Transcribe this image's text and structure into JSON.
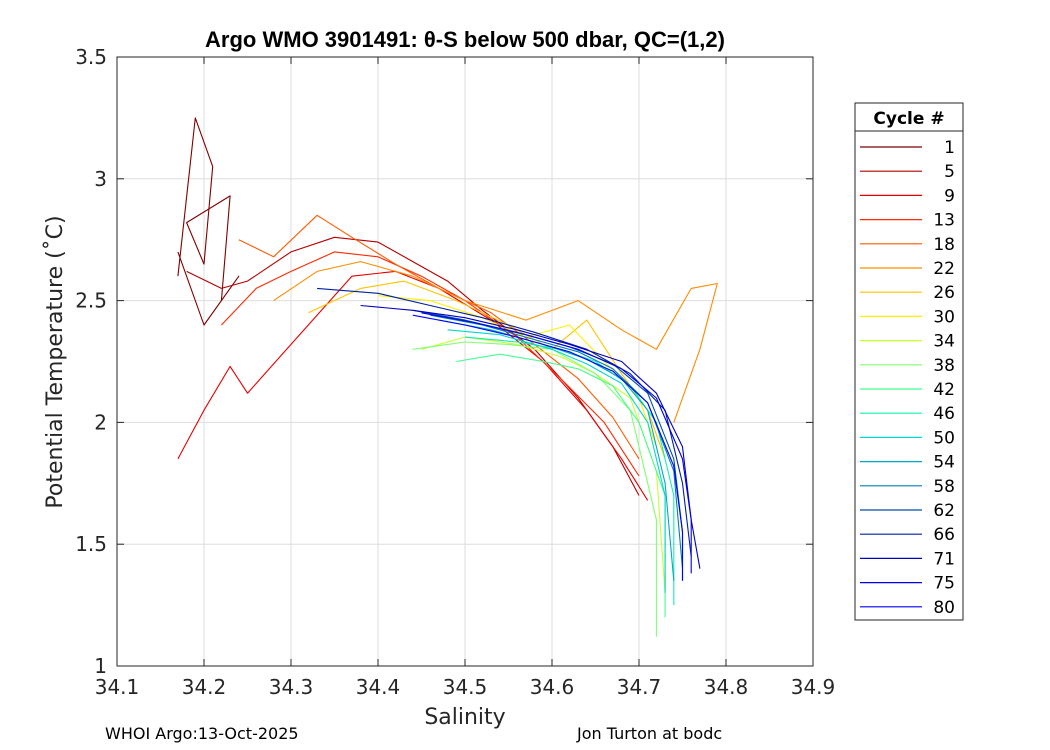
{
  "chart_data": {
    "type": "line",
    "title": "Argo WMO 3901491: θ-S below 500 dbar,  QC=(1,2)",
    "xlabel": "Salinity",
    "ylabel": "Potential Temperature (˚C)",
    "xlim": [
      34.1,
      34.9
    ],
    "ylim": [
      1,
      3.5
    ],
    "xticks": [
      "34.1",
      "34.2",
      "34.3",
      "34.4",
      "34.5",
      "34.6",
      "34.7",
      "34.8",
      "34.9"
    ],
    "yticks": [
      "1",
      "1.5",
      "2",
      "2.5",
      "3",
      "3.5"
    ],
    "grid": true,
    "legend": {
      "title": "Cycle #",
      "placement": "right",
      "entries": [
        {
          "label": "1",
          "color": "#800000"
        },
        {
          "label": "5",
          "color": "#b40000"
        },
        {
          "label": "9",
          "color": "#e60000"
        },
        {
          "label": "13",
          "color": "#ff2a00"
        },
        {
          "label": "18",
          "color": "#ff5a00"
        },
        {
          "label": "22",
          "color": "#ff8c00"
        },
        {
          "label": "26",
          "color": "#ffc400"
        },
        {
          "label": "30",
          "color": "#fff000"
        },
        {
          "label": "34",
          "color": "#c8ff30"
        },
        {
          "label": "38",
          "color": "#80ff70"
        },
        {
          "label": "42",
          "color": "#40ff90"
        },
        {
          "label": "46",
          "color": "#10f0b0"
        },
        {
          "label": "50",
          "color": "#00d8d0"
        },
        {
          "label": "54",
          "color": "#00a8c8"
        },
        {
          "label": "58",
          "color": "#0080b0"
        },
        {
          "label": "62",
          "color": "#0050a8"
        },
        {
          "label": "66",
          "color": "#0020a0"
        },
        {
          "label": "71",
          "color": "#0000c0"
        },
        {
          "label": "75",
          "color": "#0000e8"
        },
        {
          "label": "80",
          "color": "#0000ff"
        }
      ]
    },
    "series": [
      {
        "name": "1",
        "color": "#800000",
        "x": [
          34.17,
          34.19,
          34.21,
          34.2,
          34.18,
          34.23,
          34.22,
          34.24,
          34.2,
          34.17
        ],
        "y": [
          2.6,
          3.25,
          3.05,
          2.65,
          2.82,
          2.93,
          2.5,
          2.6,
          2.4,
          2.7
        ]
      },
      {
        "name": "5",
        "color": "#b40000",
        "x": [
          34.18,
          34.22,
          34.25,
          34.3,
          34.35,
          34.4,
          34.44,
          34.48,
          34.52,
          34.58,
          34.63,
          34.67,
          34.7
        ],
        "y": [
          2.62,
          2.55,
          2.58,
          2.7,
          2.76,
          2.74,
          2.66,
          2.58,
          2.46,
          2.3,
          2.1,
          1.9,
          1.7
        ]
      },
      {
        "name": "9",
        "color": "#e60000",
        "x": [
          34.17,
          34.2,
          34.23,
          34.25,
          34.3,
          34.37,
          34.42,
          34.47,
          34.53,
          34.59,
          34.64,
          34.68,
          34.71
        ],
        "y": [
          1.85,
          2.05,
          2.23,
          2.12,
          2.32,
          2.6,
          2.62,
          2.55,
          2.42,
          2.25,
          2.05,
          1.85,
          1.68
        ]
      },
      {
        "name": "13",
        "color": "#ff2a00",
        "x": [
          34.22,
          34.26,
          34.3,
          34.35,
          34.4,
          34.45,
          34.5,
          34.56,
          34.61,
          34.66,
          34.7
        ],
        "y": [
          2.4,
          2.55,
          2.62,
          2.7,
          2.68,
          2.6,
          2.5,
          2.35,
          2.18,
          2.0,
          1.78
        ]
      },
      {
        "name": "18",
        "color": "#ff5a00",
        "x": [
          34.24,
          34.28,
          34.33,
          34.37,
          34.42,
          34.47,
          34.53,
          34.58,
          34.63,
          34.67,
          34.7
        ],
        "y": [
          2.75,
          2.68,
          2.85,
          2.76,
          2.65,
          2.55,
          2.45,
          2.32,
          2.18,
          2.02,
          1.85
        ]
      },
      {
        "name": "22",
        "color": "#ff8c00",
        "x": [
          34.28,
          34.33,
          34.38,
          34.44,
          34.5,
          34.57,
          34.63,
          34.68,
          34.72,
          34.76,
          34.79,
          34.77,
          34.74
        ],
        "y": [
          2.5,
          2.62,
          2.66,
          2.6,
          2.5,
          2.42,
          2.5,
          2.38,
          2.3,
          2.55,
          2.57,
          2.3,
          2.0
        ]
      },
      {
        "name": "26",
        "color": "#ffc400",
        "x": [
          34.32,
          34.38,
          34.43,
          34.49,
          34.55,
          34.6,
          34.64,
          34.68,
          34.71,
          34.73
        ],
        "y": [
          2.45,
          2.55,
          2.58,
          2.5,
          2.4,
          2.3,
          2.42,
          2.2,
          2.05,
          1.85
        ]
      },
      {
        "name": "30",
        "color": "#fff000",
        "x": [
          34.4,
          34.46,
          34.52,
          34.57,
          34.62,
          34.66,
          34.7,
          34.72
        ],
        "y": [
          2.52,
          2.5,
          2.43,
          2.35,
          2.4,
          2.25,
          2.1,
          1.9
        ]
      },
      {
        "name": "34",
        "color": "#c8ff30",
        "x": [
          34.45,
          34.5,
          34.56,
          34.61,
          34.65,
          34.69,
          34.72,
          34.73
        ],
        "y": [
          2.3,
          2.35,
          2.32,
          2.27,
          2.2,
          2.1,
          1.8,
          1.3
        ]
      },
      {
        "name": "38",
        "color": "#80ff70",
        "x": [
          34.44,
          34.5,
          34.55,
          34.6,
          34.65,
          34.69,
          34.72,
          34.72
        ],
        "y": [
          2.3,
          2.33,
          2.32,
          2.3,
          2.2,
          2.05,
          1.6,
          1.12
        ]
      },
      {
        "name": "42",
        "color": "#40ff90",
        "x": [
          34.49,
          34.54,
          34.59,
          34.63,
          34.67,
          34.7,
          34.73,
          34.73
        ],
        "y": [
          2.25,
          2.28,
          2.25,
          2.22,
          2.15,
          2.0,
          1.7,
          1.2
        ]
      },
      {
        "name": "46",
        "color": "#10f0b0",
        "x": [
          34.5,
          34.56,
          34.61,
          34.65,
          34.69,
          34.72,
          34.74,
          34.74
        ],
        "y": [
          2.35,
          2.33,
          2.3,
          2.25,
          2.15,
          2.0,
          1.7,
          1.25
        ]
      },
      {
        "name": "50",
        "color": "#00d8d0",
        "x": [
          34.48,
          34.54,
          34.6,
          34.64,
          34.68,
          34.71,
          34.73,
          34.73
        ],
        "y": [
          2.38,
          2.36,
          2.3,
          2.24,
          2.16,
          2.0,
          1.7,
          1.3
        ]
      },
      {
        "name": "54",
        "color": "#00a8c8",
        "x": [
          34.47,
          34.53,
          34.59,
          34.64,
          34.68,
          34.71,
          34.73,
          34.74
        ],
        "y": [
          2.42,
          2.38,
          2.32,
          2.26,
          2.18,
          2.05,
          1.75,
          1.35
        ]
      },
      {
        "name": "58",
        "color": "#0080b0",
        "x": [
          34.46,
          34.52,
          34.58,
          34.63,
          34.67,
          34.71,
          34.74,
          34.75
        ],
        "y": [
          2.44,
          2.4,
          2.34,
          2.29,
          2.22,
          2.08,
          1.8,
          1.4
        ]
      },
      {
        "name": "62",
        "color": "#0050a8",
        "x": [
          34.44,
          34.5,
          34.56,
          34.62,
          34.67,
          34.71,
          34.74,
          34.75,
          34.75
        ],
        "y": [
          2.46,
          2.42,
          2.37,
          2.31,
          2.24,
          2.12,
          1.85,
          1.55,
          1.35
        ]
      },
      {
        "name": "66",
        "color": "#0020a0",
        "x": [
          34.33,
          34.4,
          34.46,
          34.52,
          34.58,
          34.64,
          34.69,
          34.73,
          34.75,
          34.76
        ],
        "y": [
          2.55,
          2.53,
          2.48,
          2.43,
          2.37,
          2.3,
          2.2,
          2.05,
          1.75,
          1.45
        ]
      },
      {
        "name": "71",
        "color": "#0000c0",
        "x": [
          34.38,
          34.44,
          34.5,
          34.56,
          34.62,
          34.68,
          34.72,
          34.75,
          34.76,
          34.77
        ],
        "y": [
          2.48,
          2.46,
          2.43,
          2.38,
          2.32,
          2.25,
          2.12,
          1.9,
          1.6,
          1.4
        ]
      },
      {
        "name": "75",
        "color": "#0000e8",
        "x": [
          34.45,
          34.51,
          34.57,
          34.63,
          34.68,
          34.72,
          34.75,
          34.76,
          34.76
        ],
        "y": [
          2.45,
          2.41,
          2.36,
          2.3,
          2.22,
          2.1,
          1.85,
          1.6,
          1.38
        ]
      },
      {
        "name": "80",
        "color": "#0000ff",
        "x": [
          34.44,
          34.5,
          34.56,
          34.62,
          34.67,
          34.71,
          34.74,
          34.75,
          34.75
        ],
        "y": [
          2.44,
          2.4,
          2.35,
          2.29,
          2.21,
          2.08,
          1.82,
          1.55,
          1.35
        ]
      }
    ]
  },
  "footer": {
    "left": "WHOI Argo:13-Oct-2025",
    "right": "Jon Turton at bodc"
  }
}
